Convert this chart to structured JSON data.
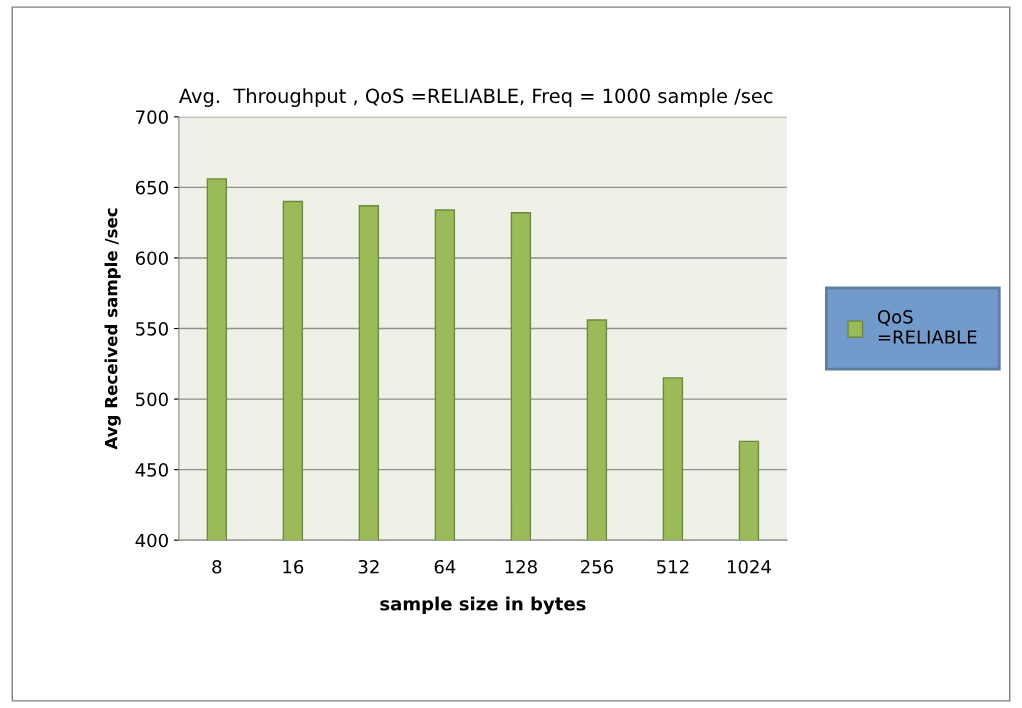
{
  "chart_data": {
    "type": "bar",
    "title": "Avg.  Throughput , QoS =RELIABLE, Freq = 1000 sample /sec",
    "xlabel": "sample size in bytes",
    "ylabel": "Avg Received sample /sec",
    "categories": [
      "8",
      "16",
      "32",
      "64",
      "128",
      "256",
      "512",
      "1024"
    ],
    "series": [
      {
        "name": "QoS\n=RELIABLE",
        "color": "#9bbb59",
        "values": [
          656,
          640,
          637,
          634,
          632,
          556,
          515,
          470
        ]
      }
    ],
    "ylim": [
      400,
      700
    ],
    "yticks": [
      400,
      450,
      500,
      550,
      600,
      650,
      700
    ],
    "grid": "y",
    "legend": "right"
  }
}
